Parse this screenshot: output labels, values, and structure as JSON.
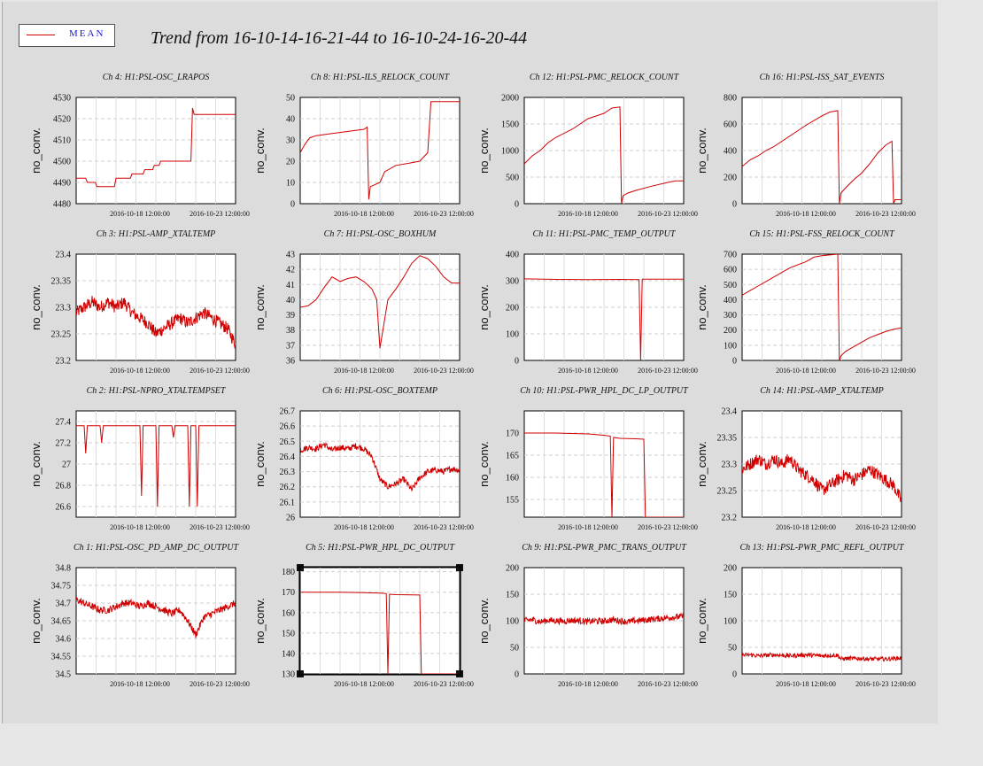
{
  "legend": {
    "label": "MEAN",
    "color": "#d00000"
  },
  "title": "Trend from 16-10-14-16-21-44 to 16-10-24-16-20-44",
  "chart_data": [
    {
      "type": "line",
      "title": "Ch 4: H1:PSL-OSC_LRAPOS",
      "ylabel": "no_conv.",
      "xticks": [
        "2016-10-18 12:00:00",
        "2016-10-23 12:00:00"
      ],
      "ylim": [
        4480,
        4530
      ],
      "yticks": [
        "4530",
        "4520",
        "4510",
        "4500",
        "4490",
        "4480"
      ],
      "x": [
        0,
        0.06,
        0.07,
        0.12,
        0.13,
        0.24,
        0.25,
        0.34,
        0.35,
        0.42,
        0.43,
        0.48,
        0.49,
        0.52,
        0.53,
        0.6,
        0.61,
        0.7,
        0.72,
        0.73,
        0.74,
        0.75,
        1
      ],
      "y": [
        4492,
        4492,
        4490,
        4490,
        4488,
        4488,
        4492,
        4492,
        4494,
        4494,
        4496,
        4496,
        4498,
        4498,
        4500,
        4500,
        4500,
        4500,
        4500,
        4525,
        4522,
        4522,
        4522
      ]
    },
    {
      "type": "line",
      "title": "Ch 8: H1:PSL-ILS_RELOCK_COUNT",
      "ylabel": "no_conv.",
      "xticks": [
        "2016-10-18 12:00:00",
        "2016-10-23 12:00:00"
      ],
      "ylim": [
        0,
        50
      ],
      "yticks": [
        "50",
        "40",
        "30",
        "20",
        "10",
        "0"
      ],
      "x": [
        0,
        0.03,
        0.06,
        0.1,
        0.2,
        0.3,
        0.4,
        0.42,
        0.43,
        0.44,
        0.5,
        0.53,
        0.6,
        0.68,
        0.75,
        0.8,
        0.82,
        1
      ],
      "y": [
        24,
        28,
        31,
        32,
        33,
        34,
        35,
        36,
        2,
        8,
        10,
        15,
        18,
        19,
        20,
        24,
        48,
        48
      ]
    },
    {
      "type": "line",
      "title": "Ch 12: H1:PSL-PMC_RELOCK_COUNT",
      "ylabel": "no_conv.",
      "xticks": [
        "2016-10-18 12:00:00",
        "2016-10-23 12:00:00"
      ],
      "ylim": [
        0,
        2000
      ],
      "yticks": [
        "2000",
        "1500",
        "1000",
        "500",
        "0"
      ],
      "x": [
        0,
        0.05,
        0.1,
        0.15,
        0.2,
        0.3,
        0.4,
        0.5,
        0.55,
        0.6,
        0.61,
        0.62,
        0.65,
        0.7,
        0.8,
        0.9,
        0.95,
        1
      ],
      "y": [
        750,
        900,
        1000,
        1150,
        1250,
        1400,
        1600,
        1700,
        1800,
        1820,
        0,
        150,
        200,
        250,
        330,
        400,
        430,
        430
      ]
    },
    {
      "type": "line",
      "title": "Ch 16: H1:PSL-ISS_SAT_EVENTS",
      "ylabel": "no_conv.",
      "xticks": [
        "2016-10-18 12:00:00",
        "2016-10-23 12:00:00"
      ],
      "ylim": [
        0,
        800
      ],
      "yticks": [
        "800",
        "600",
        "400",
        "200",
        "0"
      ],
      "x": [
        0,
        0.05,
        0.1,
        0.15,
        0.2,
        0.3,
        0.4,
        0.5,
        0.55,
        0.6,
        0.61,
        0.62,
        0.65,
        0.7,
        0.75,
        0.8,
        0.85,
        0.9,
        0.94,
        0.95,
        0.96,
        1
      ],
      "y": [
        280,
        330,
        360,
        400,
        430,
        510,
        590,
        660,
        690,
        700,
        0,
        80,
        120,
        180,
        230,
        300,
        380,
        440,
        470,
        0,
        30,
        30
      ]
    },
    {
      "type": "line",
      "title": "Ch 3: H1:PSL-AMP_XTALTEMP",
      "ylabel": "no_conv.",
      "xticks": [
        "2016-10-18 12:00:00",
        "2016-10-23 12:00:00"
      ],
      "ylim": [
        23.2,
        23.4
      ],
      "yticks": [
        "23.4",
        "23.35",
        "23.3",
        "23.25",
        "23.2"
      ],
      "x": [
        0,
        0.05,
        0.1,
        0.15,
        0.2,
        0.25,
        0.3,
        0.35,
        0.4,
        0.45,
        0.5,
        0.55,
        0.6,
        0.65,
        0.7,
        0.75,
        0.8,
        0.85,
        0.9,
        0.95,
        1
      ],
      "y": [
        23.29,
        23.3,
        23.31,
        23.3,
        23.31,
        23.3,
        23.31,
        23.29,
        23.28,
        23.27,
        23.25,
        23.26,
        23.27,
        23.28,
        23.27,
        23.28,
        23.29,
        23.28,
        23.27,
        23.26,
        23.23
      ],
      "noise": 0.012
    },
    {
      "type": "line",
      "title": "Ch 7: H1:PSL-OSC_BOXHUM",
      "ylabel": "no_conv.",
      "xticks": [
        "2016-10-18 12:00:00",
        "2016-10-23 12:00:00"
      ],
      "ylim": [
        36,
        43
      ],
      "yticks": [
        "43",
        "42",
        "41",
        "40",
        "39",
        "38",
        "37",
        "36"
      ],
      "x": [
        0,
        0.05,
        0.1,
        0.15,
        0.2,
        0.25,
        0.3,
        0.35,
        0.4,
        0.45,
        0.48,
        0.5,
        0.55,
        0.6,
        0.65,
        0.7,
        0.75,
        0.8,
        0.85,
        0.9,
        0.95,
        1
      ],
      "y": [
        39.5,
        39.6,
        40,
        40.8,
        41.5,
        41.2,
        41.4,
        41.5,
        41.2,
        40.7,
        40,
        36.8,
        40,
        40.7,
        41.5,
        42.4,
        42.9,
        42.7,
        42.2,
        41.5,
        41.1,
        41.1
      ]
    },
    {
      "type": "line",
      "title": "Ch 11: H1:PSL-PMC_TEMP_OUTPUT",
      "ylabel": "no_conv.",
      "xticks": [
        "2016-10-18 12:00:00",
        "2016-10-23 12:00:00"
      ],
      "ylim": [
        0,
        400
      ],
      "yticks": [
        "400",
        "300",
        "200",
        "100",
        "0"
      ],
      "x": [
        0,
        0.2,
        0.4,
        0.6,
        0.72,
        0.73,
        0.74,
        0.8,
        1
      ],
      "y": [
        307,
        305,
        304,
        305,
        304,
        0,
        306,
        306,
        306
      ]
    },
    {
      "type": "line",
      "title": "Ch 15: H1:PSL-FSS_RELOCK_COUNT",
      "ylabel": "no_conv.",
      "xticks": [
        "2016-10-18 12:00:00",
        "2016-10-23 12:00:00"
      ],
      "ylim": [
        0,
        700
      ],
      "yticks": [
        "700",
        "600",
        "500",
        "400",
        "300",
        "200",
        "100",
        "0"
      ],
      "x": [
        0,
        0.05,
        0.1,
        0.15,
        0.2,
        0.3,
        0.4,
        0.45,
        0.5,
        0.55,
        0.6,
        0.61,
        0.62,
        0.65,
        0.7,
        0.75,
        0.8,
        0.85,
        0.9,
        0.95,
        1
      ],
      "y": [
        430,
        460,
        490,
        520,
        550,
        610,
        650,
        680,
        690,
        695,
        700,
        0,
        30,
        60,
        90,
        120,
        150,
        170,
        190,
        205,
        215
      ]
    },
    {
      "type": "line",
      "title": "Ch 2: H1:PSL-NPRO_XTALTEMPSET",
      "ylabel": "no_conv.",
      "xticks": [
        "2016-10-18 12:00:00",
        "2016-10-23 12:00:00"
      ],
      "ylim": [
        26.5,
        27.5
      ],
      "yticks": [
        "27.4",
        "27.2",
        "27",
        "26.8",
        "26.6"
      ],
      "x": [
        0,
        0.05,
        0.06,
        0.07,
        0.15,
        0.16,
        0.17,
        0.4,
        0.41,
        0.42,
        0.5,
        0.51,
        0.52,
        0.6,
        0.61,
        0.62,
        0.7,
        0.71,
        0.72,
        0.75,
        0.76,
        0.77,
        1
      ],
      "y": [
        27.36,
        27.36,
        27.1,
        27.36,
        27.36,
        27.2,
        27.36,
        27.36,
        26.7,
        27.36,
        27.36,
        26.6,
        27.36,
        27.36,
        27.25,
        27.36,
        27.36,
        26.6,
        27.36,
        27.36,
        26.6,
        27.36,
        27.36
      ]
    },
    {
      "type": "line",
      "title": "Ch 6: H1:PSL-OSC_BOXTEMP",
      "ylabel": "no_conv.",
      "xticks": [
        "2016-10-18 12:00:00",
        "2016-10-23 12:00:00"
      ],
      "ylim": [
        26,
        26.7
      ],
      "yticks": [
        "26.7",
        "26.6",
        "26.5",
        "26.4",
        "26.3",
        "26.2",
        "26.1",
        "26"
      ],
      "x": [
        0,
        0.05,
        0.1,
        0.15,
        0.2,
        0.25,
        0.3,
        0.35,
        0.4,
        0.45,
        0.5,
        0.55,
        0.6,
        0.65,
        0.7,
        0.75,
        0.8,
        0.85,
        0.9,
        0.95,
        1
      ],
      "y": [
        26.44,
        26.46,
        26.45,
        26.48,
        26.44,
        26.46,
        26.45,
        26.47,
        26.45,
        26.4,
        26.25,
        26.2,
        26.22,
        26.25,
        26.18,
        26.26,
        26.3,
        26.31,
        26.3,
        26.32,
        26.31
      ],
      "noise": 0.02
    },
    {
      "type": "line",
      "title": "Ch 10: H1:PSL-PWR_HPL_DC_LP_OUTPUT",
      "ylabel": "no_conv.",
      "xticks": [
        "2016-10-18 12:00:00",
        "2016-10-23 12:00:00"
      ],
      "ylim": [
        151,
        175
      ],
      "yticks": [
        "170",
        "165",
        "160",
        "155"
      ],
      "x": [
        0,
        0.2,
        0.4,
        0.5,
        0.54,
        0.55,
        0.56,
        0.6,
        0.7,
        0.75,
        0.76,
        0.77,
        1
      ],
      "y": [
        170,
        170,
        169.8,
        169.5,
        169.3,
        151,
        169,
        168.8,
        168.7,
        168.6,
        151,
        151,
        151
      ]
    },
    {
      "type": "line",
      "title": "Ch 14: H1:PSL-AMP_XTALTEMP",
      "ylabel": "no_conv.",
      "xticks": [
        "2016-10-18 12:00:00",
        "2016-10-23 12:00:00"
      ],
      "ylim": [
        23.2,
        23.4
      ],
      "yticks": [
        "23.4",
        "23.35",
        "23.3",
        "23.25",
        "23.2"
      ],
      "x": [
        0,
        0.05,
        0.1,
        0.15,
        0.2,
        0.25,
        0.3,
        0.35,
        0.4,
        0.45,
        0.5,
        0.55,
        0.6,
        0.65,
        0.7,
        0.75,
        0.8,
        0.85,
        0.9,
        0.95,
        1
      ],
      "y": [
        23.29,
        23.3,
        23.31,
        23.3,
        23.31,
        23.3,
        23.31,
        23.29,
        23.28,
        23.27,
        23.25,
        23.26,
        23.27,
        23.28,
        23.27,
        23.28,
        23.29,
        23.28,
        23.27,
        23.26,
        23.23
      ],
      "noise": 0.012
    },
    {
      "type": "line",
      "title": "Ch 1: H1:PSL-OSC_PD_AMP_DC_OUTPUT",
      "ylabel": "no_conv.",
      "xticks": [
        "2016-10-18 12:00:00",
        "2016-10-23 12:00:00"
      ],
      "ylim": [
        34.5,
        34.8
      ],
      "yticks": [
        "34.8",
        "34.75",
        "34.7",
        "34.65",
        "34.6",
        "34.55",
        "34.5"
      ],
      "x": [
        0,
        0.05,
        0.1,
        0.15,
        0.2,
        0.25,
        0.3,
        0.35,
        0.4,
        0.45,
        0.5,
        0.55,
        0.6,
        0.65,
        0.7,
        0.75,
        0.8,
        0.85,
        0.9,
        0.95,
        1
      ],
      "y": [
        34.71,
        34.7,
        34.69,
        34.68,
        34.68,
        34.69,
        34.7,
        34.7,
        34.69,
        34.7,
        34.69,
        34.68,
        34.67,
        34.68,
        34.65,
        34.61,
        34.66,
        34.67,
        34.68,
        34.69,
        34.7
      ],
      "noise": 0.01
    },
    {
      "type": "line",
      "title": "Ch 5: H1:PSL-PWR_HPL_DC_OUTPUT",
      "ylabel": "no_conv.",
      "xticks": [
        "2016-10-18 12:00:00",
        "2016-10-23 12:00:00"
      ],
      "ylim": [
        130,
        182
      ],
      "yticks": [
        "180",
        "170",
        "160",
        "150",
        "140",
        "130"
      ],
      "x": [
        0,
        0.2,
        0.4,
        0.5,
        0.54,
        0.55,
        0.56,
        0.6,
        0.7,
        0.75,
        0.76,
        0.77,
        1
      ],
      "y": [
        170,
        170,
        169.8,
        169.5,
        169.3,
        130,
        169,
        168.8,
        168.7,
        168.6,
        130,
        130,
        130
      ]
    },
    {
      "type": "line",
      "title": "Ch 9: H1:PSL-PWR_PMC_TRANS_OUTPUT",
      "ylabel": "no_conv.",
      "xticks": [
        "2016-10-18 12:00:00",
        "2016-10-23 12:00:00"
      ],
      "ylim": [
        0,
        200
      ],
      "yticks": [
        "200",
        "150",
        "100",
        "50",
        "0"
      ],
      "x": [
        0,
        0.05,
        0.1,
        0.15,
        0.2,
        0.25,
        0.3,
        0.35,
        0.4,
        0.45,
        0.5,
        0.55,
        0.6,
        0.65,
        0.7,
        0.75,
        0.8,
        0.85,
        0.9,
        0.95,
        1
      ],
      "y": [
        100,
        102,
        98,
        101,
        100,
        99,
        101,
        100,
        98,
        100,
        99,
        102,
        100,
        98,
        100,
        101,
        103,
        104,
        106,
        107,
        108
      ],
      "noise": 6
    },
    {
      "type": "line",
      "title": "Ch 13: H1:PSL-PWR_PMC_REFL_OUTPUT",
      "ylabel": "no_conv.",
      "xticks": [
        "2016-10-18 12:00:00",
        "2016-10-23 12:00:00"
      ],
      "ylim": [
        0,
        200
      ],
      "yticks": [
        "200",
        "150",
        "100",
        "50",
        "0"
      ],
      "x": [
        0,
        0.05,
        0.1,
        0.15,
        0.2,
        0.25,
        0.3,
        0.35,
        0.4,
        0.45,
        0.5,
        0.55,
        0.6,
        0.62,
        0.65,
        0.7,
        0.75,
        0.8,
        0.85,
        0.9,
        0.95,
        1
      ],
      "y": [
        35,
        36,
        34,
        35,
        36,
        35,
        34,
        35,
        36,
        35,
        34,
        35,
        35,
        28,
        29,
        29,
        29,
        28,
        28,
        28,
        29,
        30
      ],
      "noise": 4
    }
  ]
}
